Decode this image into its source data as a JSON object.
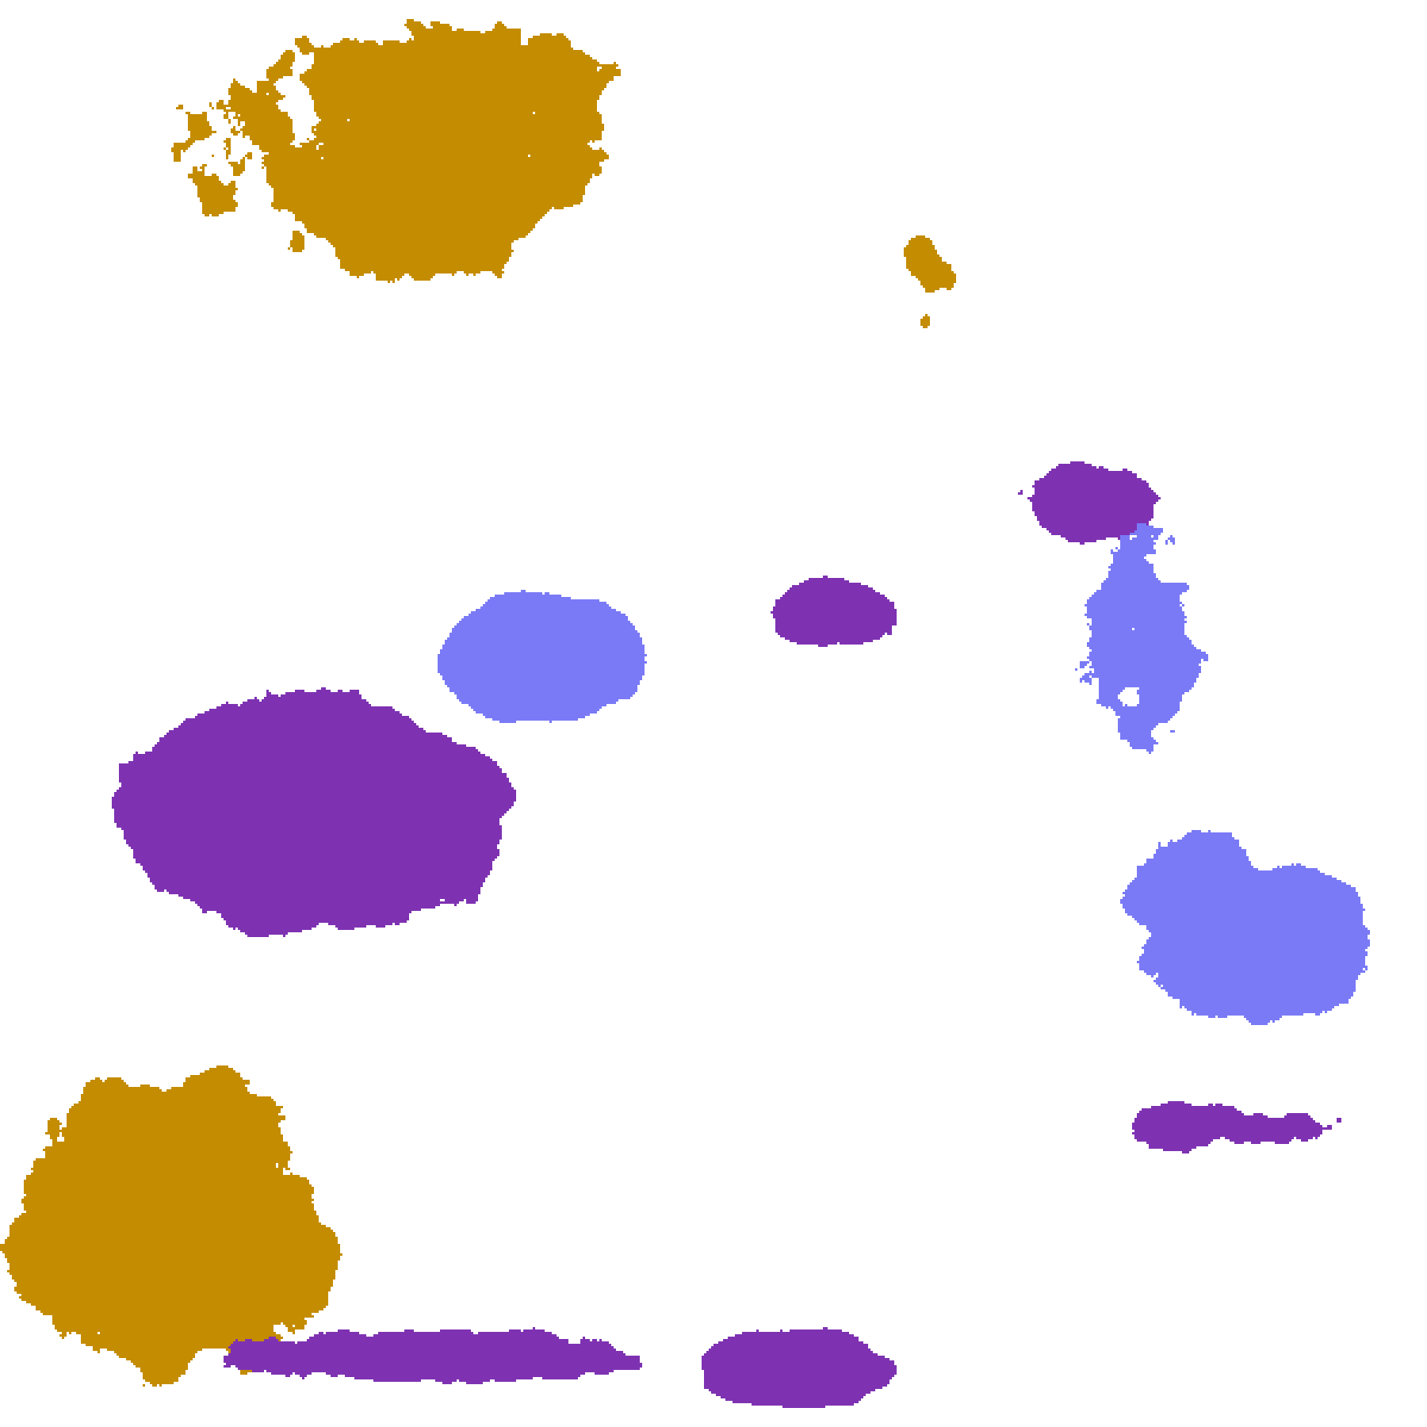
{
  "image": {
    "kind": "satellite cloud-type classification",
    "palette": {
      "no_data": "#ffffff",
      "clear": "#ffffff",
      "low_gold": "#e2b400",
      "low_dark_gold": "#c48c00",
      "mid_purple": "#7e32b2",
      "magenta": "#d050e0",
      "high_blue": "#7a7af6",
      "thin_pale_blue": "#c4c4f8",
      "thick_white": "#eeeeff",
      "gray": "#a0a0a0"
    }
  }
}
